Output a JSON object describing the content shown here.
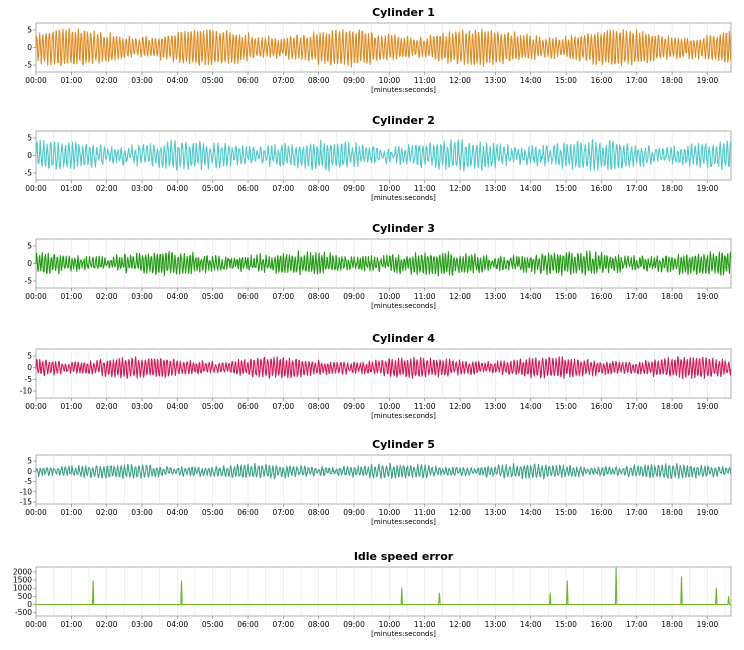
{
  "chart_data": [
    {
      "type": "line",
      "title": "Cylinder 1",
      "xlabel": "[minutes:seconds]",
      "x_ticks": [
        "00:00",
        "01:00",
        "02:00",
        "03:00",
        "04:00",
        "05:00",
        "06:00",
        "07:00",
        "08:00",
        "09:00",
        "10:00",
        "11:00",
        "12:00",
        "13:00",
        "14:00",
        "15:00",
        "16:00",
        "17:00",
        "18:00",
        "19:00"
      ],
      "x_range_seconds": [
        0,
        1180
      ],
      "ylim": [
        -7,
        7
      ],
      "y_ticks": [
        5,
        0,
        -5
      ],
      "grid": true,
      "color": "#e08a1e",
      "signal": {
        "kind": "oscillation",
        "amplitude": 5,
        "cycles_per_minute": 11,
        "noise": 0.8
      }
    },
    {
      "type": "line",
      "title": "Cylinder 2",
      "xlabel": "[minutes:seconds]",
      "x_ticks": [
        "00:00",
        "01:00",
        "02:00",
        "03:00",
        "04:00",
        "05:00",
        "06:00",
        "07:00",
        "08:00",
        "09:00",
        "10:00",
        "11:00",
        "12:00",
        "13:00",
        "14:00",
        "15:00",
        "16:00",
        "17:00",
        "18:00",
        "19:00"
      ],
      "x_range_seconds": [
        0,
        1180
      ],
      "ylim": [
        -7,
        7
      ],
      "y_ticks": [
        5,
        0,
        -5
      ],
      "grid": true,
      "color": "#4ec9c9",
      "signal": {
        "kind": "oscillation",
        "amplitude": 3.5,
        "cycles_per_minute": 10,
        "noise": 1.2
      }
    },
    {
      "type": "line",
      "title": "Cylinder 3",
      "xlabel": "[minutes:seconds]",
      "x_ticks": [
        "00:00",
        "01:00",
        "02:00",
        "03:00",
        "04:00",
        "05:00",
        "06:00",
        "07:00",
        "08:00",
        "09:00",
        "10:00",
        "11:00",
        "12:00",
        "13:00",
        "14:00",
        "15:00",
        "16:00",
        "17:00",
        "18:00",
        "19:00"
      ],
      "x_range_seconds": [
        0,
        1180
      ],
      "ylim": [
        -7,
        7
      ],
      "y_ticks": [
        5,
        0,
        -5
      ],
      "grid": true,
      "color": "#1f9a10",
      "signal": {
        "kind": "oscillation",
        "amplitude": 2.8,
        "cycles_per_minute": 12,
        "noise": 1.0
      }
    },
    {
      "type": "line",
      "title": "Cylinder 4",
      "xlabel": "[minutes:seconds]",
      "x_ticks": [
        "00:00",
        "01:00",
        "02:00",
        "03:00",
        "04:00",
        "05:00",
        "06:00",
        "07:00",
        "08:00",
        "09:00",
        "10:00",
        "11:00",
        "12:00",
        "13:00",
        "14:00",
        "15:00",
        "16:00",
        "17:00",
        "18:00",
        "19:00"
      ],
      "x_range_seconds": [
        0,
        1180
      ],
      "ylim": [
        -13,
        8
      ],
      "y_ticks": [
        5,
        0,
        -5,
        -10
      ],
      "grid": true,
      "color": "#d4185a",
      "signal": {
        "kind": "oscillation",
        "amplitude": 4,
        "cycles_per_minute": 11,
        "noise": 0.9
      }
    },
    {
      "type": "line",
      "title": "Cylinder 5",
      "xlabel": "[minutes:seconds]",
      "x_ticks": [
        "00:00",
        "01:00",
        "02:00",
        "03:00",
        "04:00",
        "05:00",
        "06:00",
        "07:00",
        "08:00",
        "09:00",
        "10:00",
        "11:00",
        "12:00",
        "13:00",
        "14:00",
        "15:00",
        "16:00",
        "17:00",
        "18:00",
        "19:00"
      ],
      "x_range_seconds": [
        0,
        1180
      ],
      "ylim": [
        -16,
        8
      ],
      "y_ticks": [
        5,
        0,
        -5,
        -10,
        -15
      ],
      "grid": true,
      "color": "#3aa088",
      "signal": {
        "kind": "oscillation",
        "amplitude": 3,
        "cycles_per_minute": 10,
        "noise": 1.0
      }
    },
    {
      "type": "line",
      "title": "Idle speed error",
      "xlabel": "[minutes:seconds]",
      "x_ticks": [
        "00:00",
        "01:00",
        "02:00",
        "03:00",
        "04:00",
        "05:00",
        "06:00",
        "07:00",
        "08:00",
        "09:00",
        "10:00",
        "11:00",
        "12:00",
        "13:00",
        "14:00",
        "15:00",
        "16:00",
        "17:00",
        "18:00",
        "19:00"
      ],
      "x_range_seconds": [
        0,
        1180
      ],
      "ylim": [
        -700,
        2300
      ],
      "y_ticks": [
        2000,
        1500,
        1000,
        500,
        0,
        -500
      ],
      "grid": true,
      "color": "#6fb52a",
      "signal": {
        "kind": "spikes",
        "baseline": 0
      },
      "spikes": [
        {
          "t": 97,
          "value": 1450
        },
        {
          "t": 247,
          "value": 1450
        },
        {
          "t": 621,
          "value": 1000
        },
        {
          "t": 685,
          "value": 700
        },
        {
          "t": 873,
          "value": 700
        },
        {
          "t": 902,
          "value": 1450
        },
        {
          "t": 985,
          "value": 2250
        },
        {
          "t": 1096,
          "value": 1700
        },
        {
          "t": 1155,
          "value": 1000
        },
        {
          "t": 1176,
          "value": 500
        }
      ]
    }
  ]
}
